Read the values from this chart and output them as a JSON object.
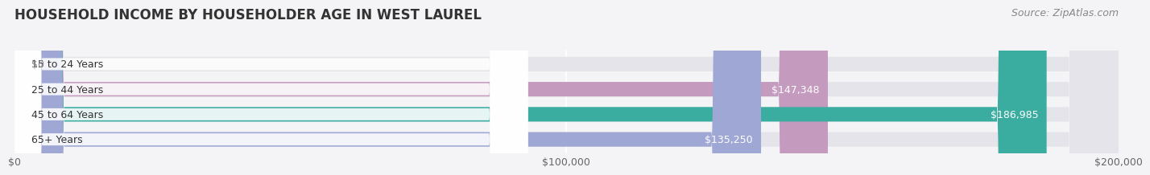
{
  "title": "HOUSEHOLD INCOME BY HOUSEHOLDER AGE IN WEST LAUREL",
  "source": "Source: ZipAtlas.com",
  "categories": [
    "15 to 24 Years",
    "25 to 44 Years",
    "45 to 64 Years",
    "65+ Years"
  ],
  "values": [
    0,
    147348,
    186985,
    135250
  ],
  "bar_colors": [
    "#a8b8d8",
    "#c49abe",
    "#3aada0",
    "#9fa8d4"
  ],
  "background_color": "#f4f4f6",
  "bar_bg_color": "#e4e4ea",
  "xlim": [
    0,
    200000
  ],
  "xticks": [
    0,
    100000,
    200000
  ],
  "xtick_labels": [
    "$0",
    "$100,000",
    "$200,000"
  ],
  "bar_height": 0.58,
  "title_fontsize": 12,
  "label_fontsize": 9,
  "tick_fontsize": 9,
  "source_fontsize": 9
}
